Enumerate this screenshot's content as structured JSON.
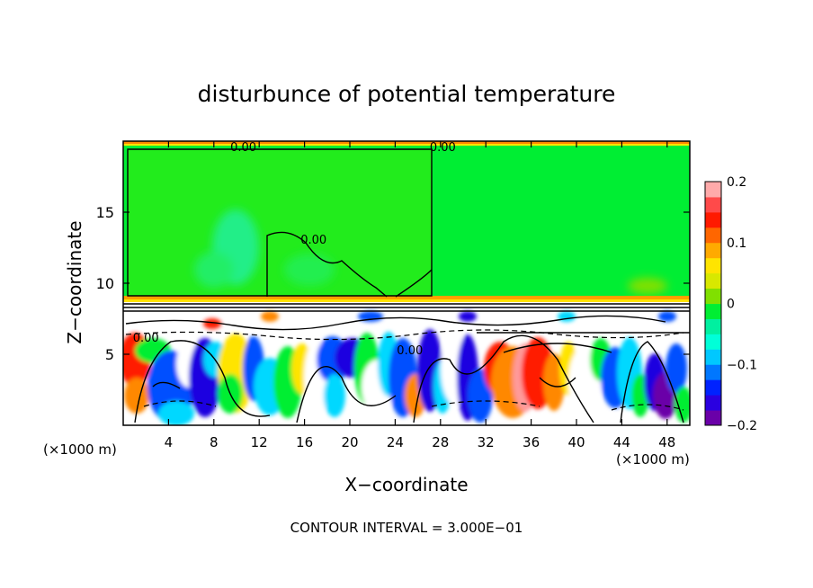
{
  "chart_data": {
    "type": "heatmap",
    "title": "disturbunce of potential temperature",
    "xlabel": "X−coordinate",
    "ylabel": "Z−coordinate",
    "x_unit_left": "(×1000 m)",
    "x_unit_right": "(×1000 m)",
    "footer": "CONTOUR INTERVAL = 3.000E−01",
    "xlim": [
      0,
      50
    ],
    "ylim": [
      0,
      20
    ],
    "x_ticks": [
      4,
      8,
      12,
      16,
      20,
      24,
      28,
      32,
      36,
      40,
      44,
      48
    ],
    "x_tick_labels": [
      "4",
      "8",
      "12",
      "16",
      "20",
      "24",
      "28",
      "32",
      "36",
      "40",
      "44",
      "48"
    ],
    "y_ticks": [
      5,
      10,
      15
    ],
    "y_tick_labels": [
      "5",
      "10",
      "15"
    ],
    "contour_labels": [
      {
        "text": "0.00",
        "x": 10.6,
        "z": 19.3
      },
      {
        "text": "0.00",
        "x": 28.2,
        "z": 19.3
      },
      {
        "text": "0.00",
        "x": 16.8,
        "z": 12.8
      },
      {
        "text": "0.00",
        "x": 2.0,
        "z": 5.9
      },
      {
        "text": "0.00",
        "x": 25.3,
        "z": 5.0
      }
    ],
    "colorbar": {
      "min": -0.2,
      "max": 0.2,
      "ticks": [
        0.2,
        0.1,
        0,
        -0.1,
        -0.2
      ],
      "tick_labels": [
        "0.2",
        "0.1",
        "0",
        "−0.1",
        "−0.2"
      ],
      "colors": [
        "#6a00a8",
        "#2a00e0",
        "#0022ff",
        "#0077ff",
        "#00c8ff",
        "#00ffd8",
        "#00f0a0",
        "#00ee33",
        "#80e000",
        "#d8e800",
        "#ffe400",
        "#ffaa00",
        "#ff6600",
        "#ff1a00",
        "#ff4a4a",
        "#ffaaaa"
      ]
    },
    "field_description_regions": {
      "upper_layer": {
        "z_range": [
          9,
          20
        ],
        "value_approx": 0.0
      },
      "boundary_layer": {
        "z_range": [
          0,
          9
        ],
        "value_range": [
          -0.2,
          0.2
        ]
      }
    }
  }
}
